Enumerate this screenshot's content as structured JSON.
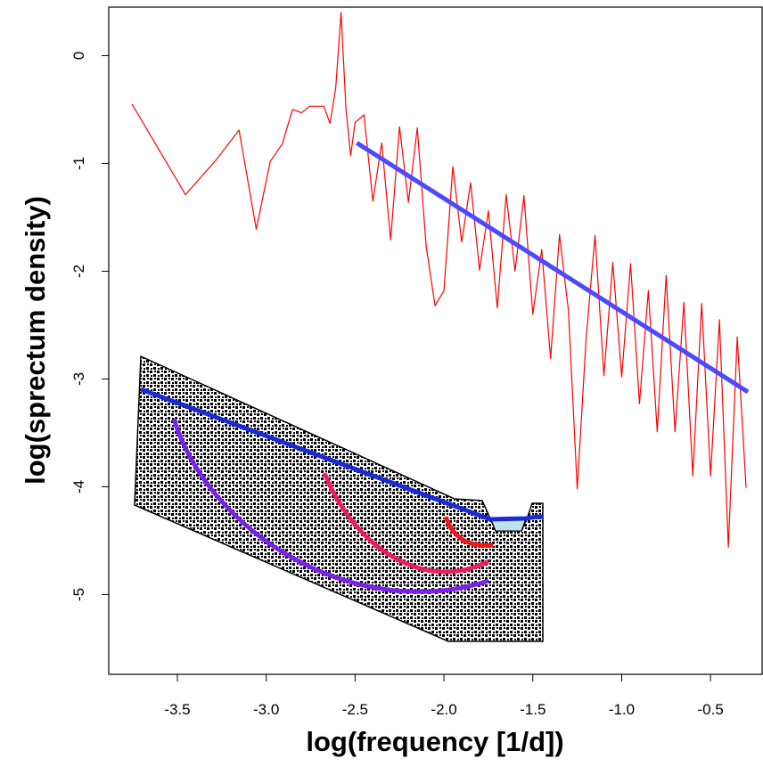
{
  "chart_data": {
    "type": "line",
    "x_label": "log(frequency [1/d])",
    "y_label": "log(sprectum density)",
    "xlim": [
      -3.886,
      -0.21
    ],
    "ylim": [
      -5.74,
      0.45
    ],
    "xticks": [
      -3.5,
      {
        "value": -3,
        "label": "-3.0"
      },
      -2.5,
      {
        "value": -2,
        "label": "-2.0"
      },
      -1.5,
      {
        "value": -1,
        "label": "-1.0"
      },
      -0.5
    ],
    "yticks": [
      -5,
      -4,
      -3,
      -2,
      -1,
      0
    ],
    "series": [
      {
        "color": "#ff0000",
        "width": 1.2,
        "x": [
          -3.755,
          -3.454,
          -3.278,
          -3.153,
          -3.056,
          -2.977,
          -2.91,
          -2.852,
          -2.801,
          -2.755,
          -2.714,
          -2.676,
          -2.641,
          -2.609,
          -2.579,
          -2.551,
          -2.525,
          -2.5,
          -2.45,
          -2.4,
          -2.35,
          -2.3,
          -2.25,
          -2.2,
          -2.15,
          -2.1,
          -2.05,
          -2.0,
          -1.95,
          -1.9,
          -1.85,
          -1.8,
          -1.75,
          -1.7,
          -1.65,
          -1.6,
          -1.55,
          -1.5,
          -1.45,
          -1.4,
          -1.35,
          -1.3,
          -1.25,
          -1.2,
          -1.15,
          -1.1,
          -1.05,
          -1.0,
          -0.95,
          -0.9,
          -0.85,
          -0.8,
          -0.75,
          -0.7,
          -0.65,
          -0.6,
          -0.55,
          -0.5,
          -0.45,
          -0.4,
          -0.35,
          -0.3
        ],
        "values": [
          -0.45,
          -1.29,
          -0.96,
          -0.69,
          -1.61,
          -0.98,
          -0.82,
          -0.5,
          -0.53,
          -0.47,
          -0.47,
          -0.47,
          -0.63,
          -0.3,
          0.4,
          -0.5,
          -0.93,
          -0.62,
          -0.55,
          -1.35,
          -0.81,
          -1.71,
          -0.66,
          -1.36,
          -0.67,
          -1.77,
          -2.32,
          -2.18,
          -1.03,
          -1.73,
          -1.18,
          -1.99,
          -1.44,
          -2.34,
          -1.29,
          -2.0,
          -1.3,
          -2.4,
          -1.8,
          -2.81,
          -1.66,
          -2.36,
          -4.02,
          -2.62,
          -1.67,
          -2.97,
          -1.92,
          -2.98,
          -1.93,
          -3.23,
          -2.18,
          -3.49,
          -2.04,
          -3.49,
          -2.29,
          -3.9,
          -2.3,
          -3.9,
          -2.45,
          -4.56,
          -2.61,
          -4.01
        ]
      },
      {
        "color": "#4a4aff",
        "width": 5,
        "x": [
          -2.49,
          -0.29
        ],
        "values": [
          -0.81,
          -3.12
        ]
      }
    ]
  }
}
